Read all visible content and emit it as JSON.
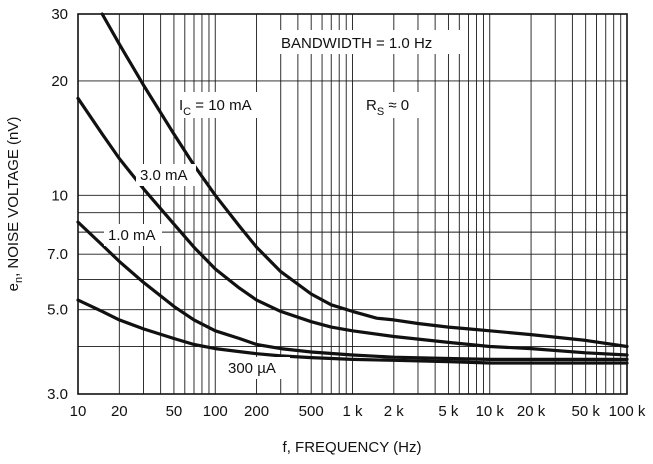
{
  "chart_data": {
    "type": "line",
    "x_scale": "log",
    "y_scale": "log",
    "xlim": [
      10,
      100000
    ],
    "ylim": [
      3,
      30
    ],
    "grid": true,
    "xlabel": "f, FREQUENCY (Hz)",
    "ylabel": "e_n, NOISE VOLTAGE (nV)",
    "ylabel_parts": {
      "pre": "e",
      "sub": "n",
      "post": ", NOISE VOLTAGE (nV)"
    },
    "x_ticks": [
      {
        "value": 10,
        "label": "10"
      },
      {
        "value": 20,
        "label": "20"
      },
      {
        "value": 50,
        "label": "50"
      },
      {
        "value": 100,
        "label": "100"
      },
      {
        "value": 200,
        "label": "200"
      },
      {
        "value": 500,
        "label": "500"
      },
      {
        "value": 1000,
        "label": "1 k"
      },
      {
        "value": 2000,
        "label": "2 k"
      },
      {
        "value": 5000,
        "label": "5 k"
      },
      {
        "value": 10000,
        "label": "10 k"
      },
      {
        "value": 20000,
        "label": "20 k"
      },
      {
        "value": 50000,
        "label": "50 k"
      },
      {
        "value": 100000,
        "label": "100 k"
      }
    ],
    "y_ticks": [
      {
        "value": 3,
        "label": "3.0"
      },
      {
        "value": 5,
        "label": "5.0"
      },
      {
        "value": 7,
        "label": "7.0"
      },
      {
        "value": 10,
        "label": "10"
      },
      {
        "value": 20,
        "label": "20"
      },
      {
        "value": 30,
        "label": "30"
      }
    ],
    "y_grid": [
      3,
      4,
      5,
      6,
      7,
      8,
      9,
      10,
      20,
      30
    ],
    "annotations": {
      "bandwidth": "BANDWIDTH = 1.0 Hz",
      "rs": {
        "pre": "R",
        "sub": "S",
        "post": " ≈ 0"
      },
      "ic_label": {
        "pre": "I",
        "sub": "C",
        "post": " = 10 mA"
      }
    },
    "series": [
      {
        "label": "I_C = 10 mA",
        "x": [
          15,
          20,
          30,
          50,
          70,
          100,
          150,
          200,
          300,
          500,
          700,
          1000,
          1500,
          2000,
          3000,
          5000,
          7000,
          10000,
          20000,
          50000,
          100000
        ],
        "y": [
          30,
          25,
          19.5,
          14.5,
          12,
          10,
          8.3,
          7.3,
          6.3,
          5.5,
          5.15,
          4.95,
          4.75,
          4.7,
          4.6,
          4.5,
          4.45,
          4.4,
          4.3,
          4.15,
          4.0
        ]
      },
      {
        "label": "3.0 mA",
        "x": [
          10,
          15,
          20,
          30,
          50,
          70,
          100,
          150,
          200,
          300,
          500,
          700,
          1000,
          2000,
          5000,
          10000,
          20000,
          50000,
          100000
        ],
        "y": [
          18,
          14.5,
          12.5,
          10.4,
          8.4,
          7.3,
          6.4,
          5.7,
          5.3,
          4.95,
          4.65,
          4.5,
          4.4,
          4.25,
          4.1,
          4.0,
          3.95,
          3.85,
          3.8
        ]
      },
      {
        "label": "1.0 mA",
        "x": [
          10,
          15,
          20,
          30,
          50,
          70,
          100,
          150,
          200,
          300,
          500,
          1000,
          2000,
          5000,
          10000,
          20000,
          50000,
          100000
        ],
        "y": [
          8.5,
          7.4,
          6.7,
          5.9,
          5.1,
          4.7,
          4.4,
          4.2,
          4.05,
          3.95,
          3.87,
          3.8,
          3.75,
          3.72,
          3.7,
          3.7,
          3.7,
          3.7
        ]
      },
      {
        "label": "300 µA",
        "x": [
          10,
          15,
          20,
          30,
          50,
          70,
          100,
          150,
          200,
          300,
          500,
          1000,
          2000,
          5000,
          10000,
          20000,
          50000,
          100000
        ],
        "y": [
          5.3,
          4.95,
          4.7,
          4.45,
          4.2,
          4.05,
          3.95,
          3.88,
          3.83,
          3.78,
          3.74,
          3.7,
          3.68,
          3.65,
          3.62,
          3.62,
          3.62,
          3.62
        ]
      }
    ]
  }
}
